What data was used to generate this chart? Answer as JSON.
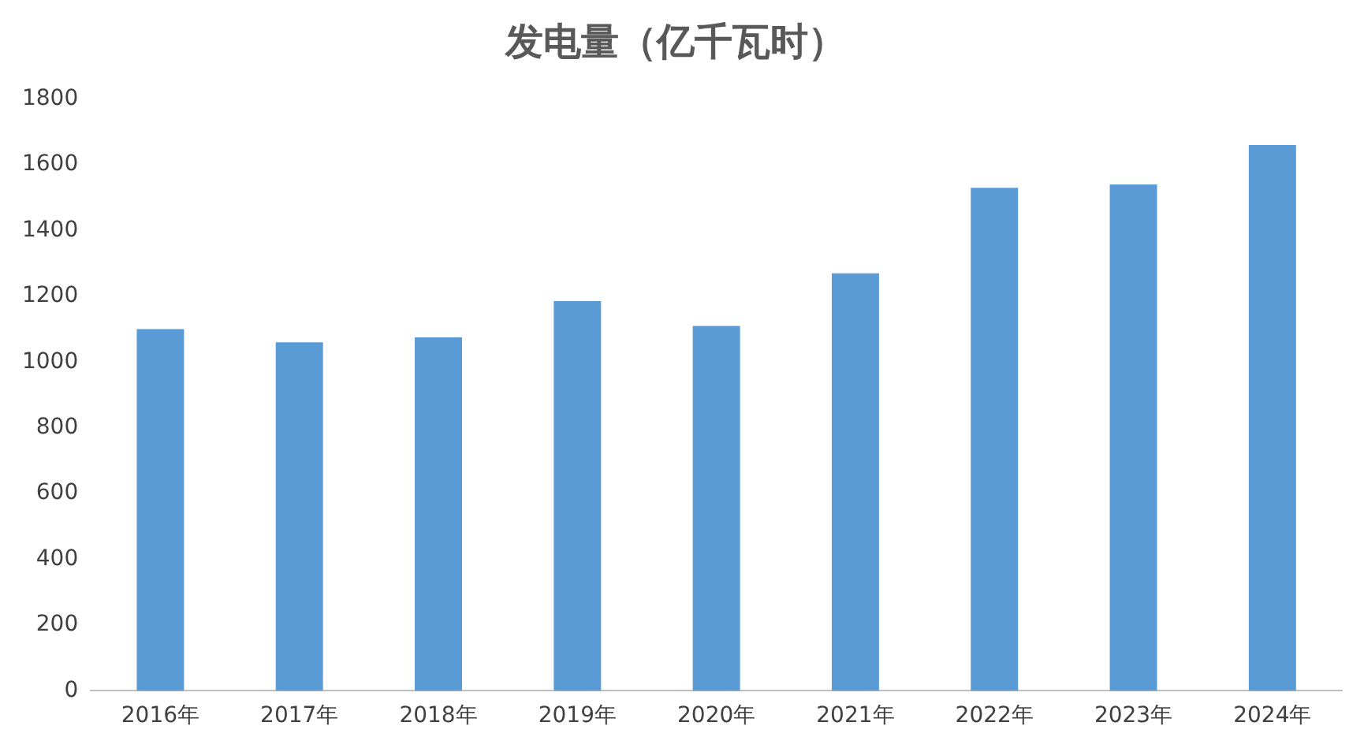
{
  "chart_data": {
    "type": "bar",
    "title": "发电量（亿千瓦时）",
    "categories": [
      "2016年",
      "2017年",
      "2018年",
      "2019年",
      "2020年",
      "2021年",
      "2022年",
      "2023年",
      "2024年"
    ],
    "values": [
      1100,
      1060,
      1075,
      1185,
      1110,
      1270,
      1530,
      1540,
      1660
    ],
    "color": "#5b9bd5",
    "ylim": [
      0,
      1800
    ],
    "yticks": [
      0,
      200,
      400,
      600,
      800,
      1000,
      1200,
      1400,
      1600,
      1800
    ],
    "grid": false
  }
}
